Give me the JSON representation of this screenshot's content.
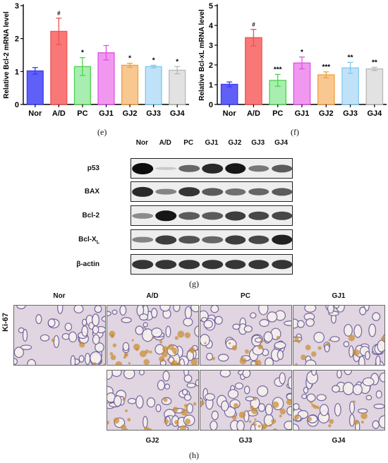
{
  "panels": {
    "e": {
      "chart_data": {
        "type": "bar",
        "ylabel": "Relative Bcl-2 mRNA level",
        "ylim": [
          0,
          3
        ],
        "yticks": [
          0,
          1,
          2,
          3
        ],
        "categories": [
          "Nor",
          "A/D",
          "PC",
          "GJ1",
          "GJ2",
          "GJ3",
          "GJ4"
        ],
        "values": [
          1.02,
          2.22,
          1.15,
          1.57,
          1.19,
          1.15,
          1.04
        ],
        "errors": [
          0.1,
          0.4,
          0.27,
          0.22,
          0.06,
          0.04,
          0.11
        ],
        "annotations": [
          "",
          "#",
          "*",
          "",
          "*",
          "*",
          "*"
        ],
        "colors": [
          "#3a3af0",
          "#f05050",
          "#50d050",
          "#e050e0",
          "#f0a040",
          "#80c8f0",
          "#b8b8b8"
        ],
        "fills": [
          "#6060f8",
          "#f87878",
          "#a8eeb0",
          "#f098f0",
          "#f8c890",
          "#c0e2f8",
          "#e2e2e2"
        ]
      },
      "label": "(e)"
    },
    "f": {
      "chart_data": {
        "type": "bar",
        "ylabel": "Relative Bcl-xL mRNA level",
        "ylim": [
          0,
          5
        ],
        "yticks": [
          0,
          1,
          2,
          3,
          4,
          5
        ],
        "categories": [
          "Nor",
          "A/D",
          "PC",
          "GJ1",
          "GJ2",
          "GJ3",
          "GJ4"
        ],
        "values": [
          1.02,
          3.38,
          1.22,
          2.1,
          1.5,
          1.85,
          1.8
        ],
        "errors": [
          0.12,
          0.42,
          0.3,
          0.3,
          0.15,
          0.28,
          0.08
        ],
        "annotations": [
          "",
          "#",
          "***",
          "*",
          "***",
          "**",
          "**"
        ],
        "colors": [
          "#3a3af0",
          "#f05050",
          "#50d050",
          "#e050e0",
          "#f0a040",
          "#80c8f0",
          "#b8b8b8"
        ],
        "fills": [
          "#6060f8",
          "#f87878",
          "#a8eeb0",
          "#f098f0",
          "#f8c890",
          "#c0e2f8",
          "#e2e2e2"
        ]
      },
      "label": "(f)"
    },
    "g": {
      "label": "(g)",
      "columns": [
        "Nor",
        "A/D",
        "PC",
        "GJ1",
        "GJ2",
        "GJ3",
        "GJ4"
      ],
      "rows": [
        {
          "name": "p53",
          "intensity": [
            1.0,
            0.05,
            0.55,
            0.85,
            0.95,
            0.45,
            0.6
          ]
        },
        {
          "name": "BAX",
          "intensity": [
            0.85,
            0.4,
            0.8,
            0.6,
            0.5,
            0.55,
            0.6
          ]
        },
        {
          "name": "Bcl-2",
          "intensity": [
            0.35,
            0.95,
            0.6,
            0.6,
            0.75,
            0.7,
            0.7
          ]
        },
        {
          "name": "Bcl-X",
          "subscript": "L",
          "intensity": [
            0.4,
            0.75,
            0.65,
            0.55,
            0.75,
            0.7,
            0.9
          ]
        },
        {
          "name": "β-actin",
          "intensity": [
            0.8,
            0.8,
            0.8,
            0.8,
            0.8,
            0.8,
            0.8
          ]
        }
      ]
    },
    "h": {
      "label": "(h)",
      "stain_label": "Ki-67",
      "top_titles": [
        "Nor",
        "A/D",
        "PC",
        "GJ1"
      ],
      "bottom_titles": [
        "GJ2",
        "GJ3",
        "GJ4"
      ],
      "brown_level": {
        "Nor": 0.1,
        "A/D": 0.9,
        "PC": 0.25,
        "GJ1": 0.3,
        "GJ2": 0.45,
        "GJ3": 0.5,
        "GJ4": 0.3
      }
    }
  }
}
